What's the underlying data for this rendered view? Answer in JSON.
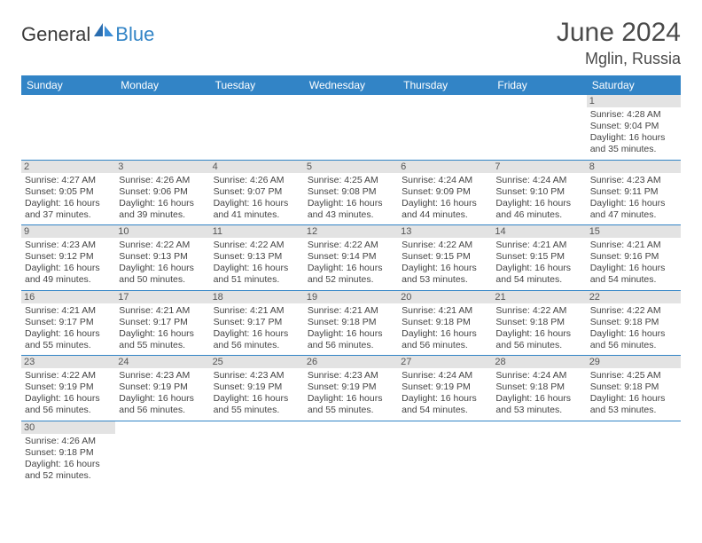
{
  "logo": {
    "main": "General",
    "sub": "Blue"
  },
  "title": "June 2024",
  "location": "Mglin, Russia",
  "colors": {
    "header_bg": "#3284c6",
    "header_text": "#ffffff",
    "daynum_bg": "#e3e3e3",
    "border": "#3284c6",
    "text": "#444444",
    "logo_main": "#3a3a3a",
    "logo_sub": "#3284c6"
  },
  "weekdays": [
    "Sunday",
    "Monday",
    "Tuesday",
    "Wednesday",
    "Thursday",
    "Friday",
    "Saturday"
  ],
  "days": {
    "1": {
      "sunrise": "4:28 AM",
      "sunset": "9:04 PM",
      "day_h": 16,
      "day_m": 35
    },
    "2": {
      "sunrise": "4:27 AM",
      "sunset": "9:05 PM",
      "day_h": 16,
      "day_m": 37
    },
    "3": {
      "sunrise": "4:26 AM",
      "sunset": "9:06 PM",
      "day_h": 16,
      "day_m": 39
    },
    "4": {
      "sunrise": "4:26 AM",
      "sunset": "9:07 PM",
      "day_h": 16,
      "day_m": 41
    },
    "5": {
      "sunrise": "4:25 AM",
      "sunset": "9:08 PM",
      "day_h": 16,
      "day_m": 43
    },
    "6": {
      "sunrise": "4:24 AM",
      "sunset": "9:09 PM",
      "day_h": 16,
      "day_m": 44
    },
    "7": {
      "sunrise": "4:24 AM",
      "sunset": "9:10 PM",
      "day_h": 16,
      "day_m": 46
    },
    "8": {
      "sunrise": "4:23 AM",
      "sunset": "9:11 PM",
      "day_h": 16,
      "day_m": 47
    },
    "9": {
      "sunrise": "4:23 AM",
      "sunset": "9:12 PM",
      "day_h": 16,
      "day_m": 49
    },
    "10": {
      "sunrise": "4:22 AM",
      "sunset": "9:13 PM",
      "day_h": 16,
      "day_m": 50
    },
    "11": {
      "sunrise": "4:22 AM",
      "sunset": "9:13 PM",
      "day_h": 16,
      "day_m": 51
    },
    "12": {
      "sunrise": "4:22 AM",
      "sunset": "9:14 PM",
      "day_h": 16,
      "day_m": 52
    },
    "13": {
      "sunrise": "4:22 AM",
      "sunset": "9:15 PM",
      "day_h": 16,
      "day_m": 53
    },
    "14": {
      "sunrise": "4:21 AM",
      "sunset": "9:15 PM",
      "day_h": 16,
      "day_m": 54
    },
    "15": {
      "sunrise": "4:21 AM",
      "sunset": "9:16 PM",
      "day_h": 16,
      "day_m": 54
    },
    "16": {
      "sunrise": "4:21 AM",
      "sunset": "9:17 PM",
      "day_h": 16,
      "day_m": 55
    },
    "17": {
      "sunrise": "4:21 AM",
      "sunset": "9:17 PM",
      "day_h": 16,
      "day_m": 55
    },
    "18": {
      "sunrise": "4:21 AM",
      "sunset": "9:17 PM",
      "day_h": 16,
      "day_m": 56
    },
    "19": {
      "sunrise": "4:21 AM",
      "sunset": "9:18 PM",
      "day_h": 16,
      "day_m": 56
    },
    "20": {
      "sunrise": "4:21 AM",
      "sunset": "9:18 PM",
      "day_h": 16,
      "day_m": 56
    },
    "21": {
      "sunrise": "4:22 AM",
      "sunset": "9:18 PM",
      "day_h": 16,
      "day_m": 56
    },
    "22": {
      "sunrise": "4:22 AM",
      "sunset": "9:18 PM",
      "day_h": 16,
      "day_m": 56
    },
    "23": {
      "sunrise": "4:22 AM",
      "sunset": "9:19 PM",
      "day_h": 16,
      "day_m": 56
    },
    "24": {
      "sunrise": "4:23 AM",
      "sunset": "9:19 PM",
      "day_h": 16,
      "day_m": 56
    },
    "25": {
      "sunrise": "4:23 AM",
      "sunset": "9:19 PM",
      "day_h": 16,
      "day_m": 55
    },
    "26": {
      "sunrise": "4:23 AM",
      "sunset": "9:19 PM",
      "day_h": 16,
      "day_m": 55
    },
    "27": {
      "sunrise": "4:24 AM",
      "sunset": "9:19 PM",
      "day_h": 16,
      "day_m": 54
    },
    "28": {
      "sunrise": "4:24 AM",
      "sunset": "9:18 PM",
      "day_h": 16,
      "day_m": 53
    },
    "29": {
      "sunrise": "4:25 AM",
      "sunset": "9:18 PM",
      "day_h": 16,
      "day_m": 53
    },
    "30": {
      "sunrise": "4:26 AM",
      "sunset": "9:18 PM",
      "day_h": 16,
      "day_m": 52
    }
  },
  "labels": {
    "sunrise": "Sunrise:",
    "sunset": "Sunset:",
    "daylight": "Daylight:",
    "hours": "hours",
    "and": "and",
    "minutes": "minutes."
  },
  "layout": {
    "first_weekday_index": 6,
    "num_days": 30,
    "cols": 7
  }
}
